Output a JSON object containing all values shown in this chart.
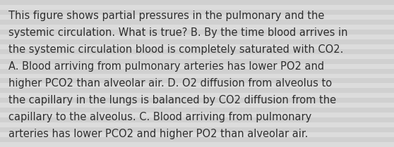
{
  "text_lines": [
    "This figure shows partial pressures in the pulmonary and the",
    "systemic circulation. What is true? B. By the time blood arrives in",
    "the systemic circulation blood is completely saturated with CO2.",
    "A. Blood arriving from pulmonary arteries has lower PO2 and",
    "higher PCO2 than alveolar air. D. O2 diffusion from alveolus to",
    "the capillary in the lungs is balanced by CO2 diffusion from the",
    "capillary to the alveolus. C. Blood arriving from pulmonary",
    "arteries has lower PCO2 and higher PO2 than alveolar air."
  ],
  "background_color": "#d8d8d8",
  "stripe_color_light": "#dcdcdc",
  "stripe_color_dark": "#d0d0d0",
  "text_color": "#2e2e2e",
  "font_size": 10.5,
  "fig_width": 5.58,
  "fig_height": 2.09,
  "dpi": 100
}
